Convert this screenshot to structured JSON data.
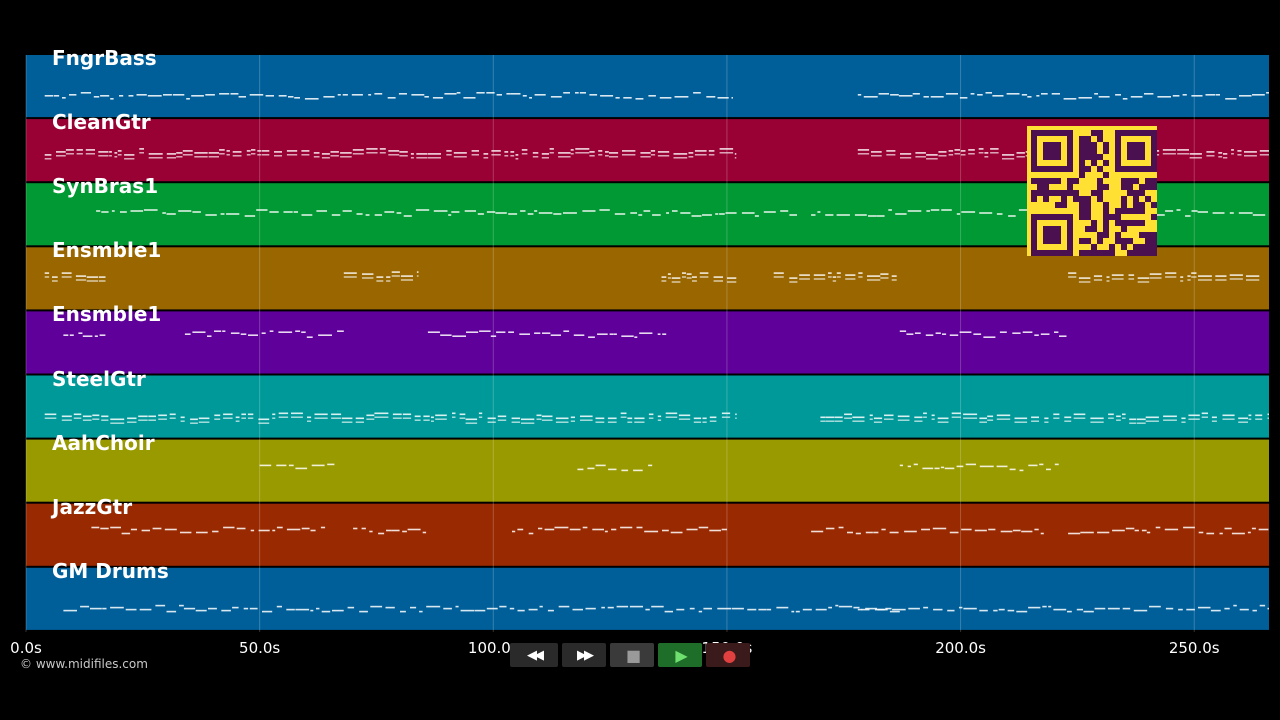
{
  "tracks": [
    {
      "name": "FngrBass",
      "color": "#005f99"
    },
    {
      "name": "CleanGtr",
      "color": "#990033"
    },
    {
      "name": "SynBras1",
      "color": "#009933"
    },
    {
      "name": "Ensmble1",
      "color": "#996600"
    },
    {
      "name": "Ensmble1",
      "color": "#5e0099"
    },
    {
      "name": "SteelGtr",
      "color": "#009999"
    },
    {
      "name": "AahChoir",
      "color": "#999900"
    },
    {
      "name": "JazzGtr",
      "color": "#992900"
    },
    {
      "name": "GM Drums",
      "color": "#005f99"
    }
  ],
  "timeline": {
    "ticks": [
      "0.0s",
      "50.0s",
      "100.0s",
      "150.0s",
      "200.0s",
      "250.0s"
    ],
    "tick_values": [
      0,
      50,
      100,
      150,
      200,
      250
    ],
    "max_seconds": 266
  },
  "copyright": "© www.midifiles.com",
  "transport": {
    "buttons": [
      {
        "name": "rewind-button",
        "icon": "rewind-icon",
        "symbol": "◀◀"
      },
      {
        "name": "fast-forward-button",
        "icon": "fast-forward-icon",
        "symbol": "▶▶"
      },
      {
        "name": "stop-button",
        "icon": "stop-icon",
        "symbol": "■"
      },
      {
        "name": "play-button",
        "icon": "play-icon",
        "symbol": "▶"
      },
      {
        "name": "record-button",
        "icon": "record-icon",
        "symbol": "●"
      }
    ]
  },
  "qr_colors": {
    "background": "#ffe033",
    "modules": "#4a1050"
  }
}
